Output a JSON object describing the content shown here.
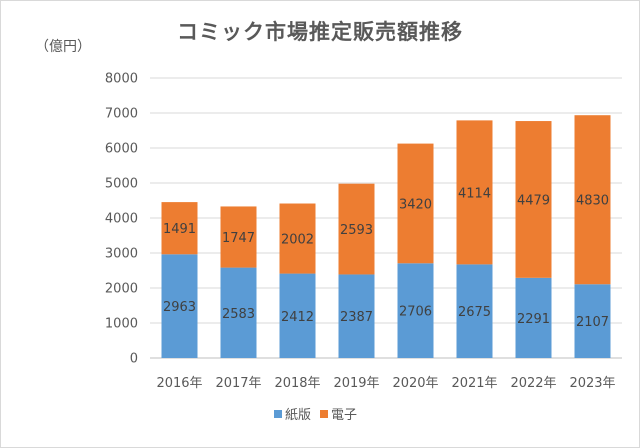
{
  "chart_data": {
    "type": "bar",
    "stacked": true,
    "title": "コミック市場推定販売額推移",
    "unit_label": "（億円）",
    "categories": [
      "2016年",
      "2017年",
      "2018年",
      "2019年",
      "2020年",
      "2021年",
      "2022年",
      "2023年"
    ],
    "series": [
      {
        "name": "紙版",
        "color": "#5b9bd5",
        "values": [
          2963,
          2583,
          2412,
          2387,
          2706,
          2675,
          2291,
          2107
        ]
      },
      {
        "name": "電子",
        "color": "#ed7d31",
        "values": [
          1491,
          1747,
          2002,
          2593,
          3420,
          4114,
          4479,
          4830
        ]
      }
    ],
    "ylim": [
      0,
      8000
    ],
    "yticks": [
      0,
      1000,
      2000,
      3000,
      4000,
      5000,
      6000,
      7000,
      8000
    ],
    "grid": true,
    "legend_position": "bottom"
  }
}
